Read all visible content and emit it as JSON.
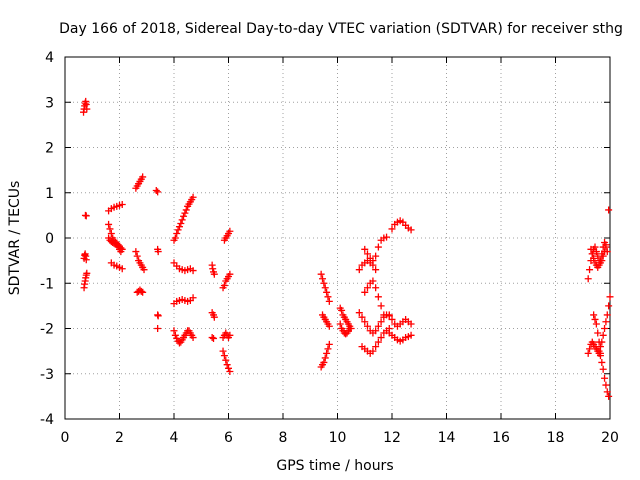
{
  "chart_data": {
    "type": "scatter",
    "title": "Day 166 of 2018, Sidereal Day-to-day VTEC variation (SDTVAR) for receiver sthg",
    "xlabel": "GPS time / hours",
    "ylabel": "SDTVAR / TECUs",
    "xlim": [
      0,
      20
    ],
    "ylim": [
      -4,
      4
    ],
    "x_ticks": [
      "0",
      "2",
      "4",
      "6",
      "8",
      "10",
      "12",
      "14",
      "16",
      "18",
      "20"
    ],
    "y_ticks": [
      "-4",
      "-3",
      "-2",
      "-1",
      "0",
      "1",
      "2",
      "3",
      "4"
    ],
    "grid": true,
    "marker": "+",
    "marker_color": "#ff0000",
    "segments": [
      {
        "x": [
          0.68,
          0.7,
          0.72,
          0.74,
          0.76,
          0.78,
          0.8
        ],
        "y": [
          2.78,
          2.85,
          2.92,
          2.98,
          3.02,
          2.95,
          2.85
        ]
      },
      {
        "x": [
          0.7,
          0.72,
          0.74,
          0.76,
          0.78
        ],
        "y": [
          -0.45,
          -0.38,
          -0.35,
          -0.4,
          -0.48
        ]
      },
      {
        "x": [
          0.7,
          0.72,
          0.74,
          0.76,
          0.78,
          0.8
        ],
        "y": [
          -1.1,
          -1.02,
          -0.95,
          -0.88,
          -0.82,
          -0.78
        ]
      },
      {
        "x": [
          0.75,
          0.78
        ],
        "y": [
          0.5,
          0.49
        ]
      },
      {
        "x": [
          1.6,
          1.7,
          1.8,
          1.9,
          2.0,
          2.1
        ],
        "y": [
          0.6,
          0.65,
          0.68,
          0.7,
          0.72,
          0.74
        ]
      },
      {
        "x": [
          1.6,
          1.65,
          1.7,
          1.75,
          1.8,
          1.85,
          1.9,
          1.95,
          2.0,
          2.05,
          2.1
        ],
        "y": [
          0.3,
          0.2,
          0.1,
          0.0,
          -0.05,
          -0.1,
          -0.12,
          -0.15,
          -0.18,
          -0.22,
          -0.25
        ]
      },
      {
        "x": [
          1.6,
          1.65,
          1.7,
          1.75,
          1.8,
          1.85,
          1.9,
          1.95,
          2.0,
          2.05
        ],
        "y": [
          0.0,
          -0.05,
          -0.08,
          -0.1,
          -0.12,
          -0.12,
          -0.15,
          -0.2,
          -0.25,
          -0.3
        ]
      },
      {
        "x": [
          1.7,
          1.8,
          1.9,
          2.0,
          2.1
        ],
        "y": [
          -0.55,
          -0.6,
          -0.62,
          -0.65,
          -0.68
        ]
      },
      {
        "x": [
          2.6,
          2.65,
          2.7,
          2.75,
          2.8,
          2.85
        ],
        "y": [
          1.1,
          1.15,
          1.2,
          1.25,
          1.3,
          1.35
        ]
      },
      {
        "x": [
          2.6,
          2.65,
          2.7,
          2.75,
          2.8,
          2.85,
          2.9
        ],
        "y": [
          -0.3,
          -0.4,
          -0.5,
          -0.55,
          -0.6,
          -0.65,
          -0.7
        ]
      },
      {
        "x": [
          2.65,
          2.7,
          2.75,
          2.8,
          2.85
        ],
        "y": [
          -1.2,
          -1.18,
          -1.15,
          -1.18,
          -1.2
        ]
      },
      {
        "x": [
          3.35,
          3.4
        ],
        "y": [
          1.05,
          1.02
        ]
      },
      {
        "x": [
          3.4,
          3.42
        ],
        "y": [
          -0.25,
          -0.3
        ]
      },
      {
        "x": [
          3.4,
          3.42
        ],
        "y": [
          -1.7,
          -1.72
        ]
      },
      {
        "x": [
          3.4
        ],
        "y": [
          -2.0
        ]
      },
      {
        "x": [
          4.0,
          4.05,
          4.1,
          4.15,
          4.2,
          4.25,
          4.3,
          4.35,
          4.4,
          4.45,
          4.5,
          4.55,
          4.6,
          4.65,
          4.7
        ],
        "y": [
          -0.05,
          0.0,
          0.1,
          0.18,
          0.25,
          0.32,
          0.4,
          0.48,
          0.55,
          0.62,
          0.7,
          0.75,
          0.8,
          0.85,
          0.9
        ]
      },
      {
        "x": [
          4.0,
          4.1,
          4.2,
          4.3,
          4.4,
          4.5,
          4.6,
          4.7
        ],
        "y": [
          -0.55,
          -0.62,
          -0.68,
          -0.7,
          -0.72,
          -0.7,
          -0.68,
          -0.72
        ]
      },
      {
        "x": [
          4.0,
          4.1,
          4.2,
          4.3,
          4.4,
          4.5,
          4.6,
          4.7
        ],
        "y": [
          -1.45,
          -1.4,
          -1.38,
          -1.36,
          -1.38,
          -1.4,
          -1.38,
          -1.32
        ]
      },
      {
        "x": [
          4.0,
          4.05,
          4.1,
          4.15,
          4.2,
          4.25,
          4.3,
          4.35,
          4.4,
          4.45,
          4.5,
          4.55,
          4.6,
          4.65,
          4.7
        ],
        "y": [
          -2.05,
          -2.15,
          -2.22,
          -2.28,
          -2.32,
          -2.3,
          -2.25,
          -2.2,
          -2.15,
          -2.1,
          -2.05,
          -2.05,
          -2.1,
          -2.15,
          -2.2
        ]
      },
      {
        "x": [
          5.4,
          5.42,
          5.45,
          5.48
        ],
        "y": [
          -0.6,
          -0.68,
          -0.75,
          -0.8
        ]
      },
      {
        "x": [
          5.4,
          5.45,
          5.48
        ],
        "y": [
          -1.65,
          -1.7,
          -1.75
        ]
      },
      {
        "x": [
          5.4,
          5.45
        ],
        "y": [
          -2.2,
          -2.22
        ]
      },
      {
        "x": [
          5.85,
          5.9,
          5.95,
          6.0,
          6.05
        ],
        "y": [
          -0.05,
          0.0,
          0.05,
          0.1,
          0.15
        ]
      },
      {
        "x": [
          5.8,
          5.85,
          5.9,
          5.95,
          6.0,
          6.05
        ],
        "y": [
          -1.1,
          -1.05,
          -0.95,
          -0.9,
          -0.85,
          -0.8
        ]
      },
      {
        "x": [
          5.8,
          5.85,
          5.9,
          5.95,
          6.0,
          6.05
        ],
        "y": [
          -2.2,
          -2.15,
          -2.1,
          -2.15,
          -2.2,
          -2.15
        ]
      },
      {
        "x": [
          5.8,
          5.85,
          5.9,
          5.95,
          6.0,
          6.05
        ],
        "y": [
          -2.5,
          -2.6,
          -2.7,
          -2.8,
          -2.88,
          -2.95
        ]
      },
      {
        "x": [
          9.4,
          9.45,
          9.5,
          9.55,
          9.6,
          9.65,
          9.7
        ],
        "y": [
          -0.8,
          -0.9,
          -1.0,
          -1.1,
          -1.2,
          -1.3,
          -1.4
        ]
      },
      {
        "x": [
          9.45,
          9.5,
          9.55,
          9.6,
          9.65,
          9.7
        ],
        "y": [
          -1.7,
          -1.75,
          -1.8,
          -1.85,
          -1.9,
          -1.95
        ]
      },
      {
        "x": [
          9.4,
          9.45,
          9.5,
          9.55,
          9.6,
          9.65,
          9.7
        ],
        "y": [
          -2.85,
          -2.8,
          -2.75,
          -2.65,
          -2.55,
          -2.45,
          -2.35
        ]
      },
      {
        "x": [
          10.1,
          10.15,
          10.2,
          10.25,
          10.3,
          10.35,
          10.4,
          10.45,
          10.5
        ],
        "y": [
          -1.55,
          -1.6,
          -1.7,
          -1.75,
          -1.8,
          -1.85,
          -1.9,
          -1.95,
          -2.0
        ]
      },
      {
        "x": [
          10.1,
          10.15,
          10.2,
          10.25,
          10.3,
          10.35,
          10.4,
          10.45
        ],
        "y": [
          -1.9,
          -2.0,
          -2.05,
          -2.1,
          -2.12,
          -2.1,
          -2.05,
          -2.0
        ]
      },
      {
        "x": [
          10.8,
          10.9,
          11.0,
          11.1,
          11.2,
          11.3,
          11.4
        ],
        "y": [
          -0.7,
          -0.6,
          -0.55,
          -0.5,
          -0.55,
          -0.6,
          -0.7
        ]
      },
      {
        "x": [
          11.0,
          11.1,
          11.2,
          11.3,
          11.4,
          11.5,
          11.6,
          11.7,
          11.8
        ],
        "y": [
          -0.25,
          -0.35,
          -0.45,
          -0.5,
          -0.4,
          -0.2,
          -0.05,
          0.0,
          0.02
        ]
      },
      {
        "x": [
          11.0,
          11.1,
          11.2,
          11.3,
          11.4,
          11.5,
          11.6,
          11.7
        ],
        "y": [
          -1.2,
          -1.1,
          -1.0,
          -0.95,
          -1.1,
          -1.3,
          -1.5,
          -1.7
        ]
      },
      {
        "x": [
          10.8,
          10.9,
          11.0,
          11.1,
          11.2,
          11.3,
          11.4,
          11.5,
          11.6,
          11.7,
          11.8,
          11.9
        ],
        "y": [
          -1.65,
          -1.75,
          -1.85,
          -1.95,
          -2.05,
          -2.1,
          -2.05,
          -1.95,
          -1.85,
          -1.75,
          -1.7,
          -1.72
        ]
      },
      {
        "x": [
          10.9,
          11.0,
          11.1,
          11.2,
          11.3,
          11.4,
          11.5,
          11.6,
          11.7,
          11.8,
          11.9
        ],
        "y": [
          -2.4,
          -2.45,
          -2.5,
          -2.55,
          -2.5,
          -2.4,
          -2.3,
          -2.2,
          -2.1,
          -2.05,
          -2.0
        ]
      },
      {
        "x": [
          12.0,
          12.1,
          12.2,
          12.3,
          12.4,
          12.5,
          12.6,
          12.7
        ],
        "y": [
          0.2,
          0.3,
          0.35,
          0.38,
          0.35,
          0.28,
          0.22,
          0.18
        ]
      },
      {
        "x": [
          11.9,
          12.0,
          12.1,
          12.2,
          12.3,
          12.4,
          12.5,
          12.6,
          12.7
        ],
        "y": [
          -1.7,
          -1.8,
          -1.9,
          -1.95,
          -1.9,
          -1.85,
          -1.8,
          -1.85,
          -1.9
        ]
      },
      {
        "x": [
          11.9,
          12.0,
          12.1,
          12.2,
          12.3,
          12.4,
          12.5,
          12.6,
          12.7
        ],
        "y": [
          -2.1,
          -2.15,
          -2.2,
          -2.25,
          -2.28,
          -2.25,
          -2.2,
          -2.18,
          -2.15
        ]
      },
      {
        "x": [
          19.2,
          19.25,
          19.3,
          19.35,
          19.4,
          19.45,
          19.5,
          19.55,
          19.6,
          19.65,
          19.7,
          19.75,
          19.8,
          19.85
        ],
        "y": [
          -0.9,
          -0.7,
          -0.5,
          -0.35,
          -0.25,
          -0.2,
          -0.3,
          -0.4,
          -0.5,
          -0.55,
          -0.5,
          -0.4,
          -0.3,
          -0.2
        ]
      },
      {
        "x": [
          19.3,
          19.35,
          19.4,
          19.45,
          19.5,
          19.55,
          19.6,
          19.65,
          19.7,
          19.75,
          19.8,
          19.85,
          19.9
        ],
        "y": [
          -0.25,
          -0.35,
          -0.45,
          -0.55,
          -0.6,
          -0.65,
          -0.6,
          -0.5,
          -0.35,
          -0.2,
          -0.1,
          -0.15,
          -0.3
        ]
      },
      {
        "x": [
          19.2,
          19.25,
          19.3,
          19.35,
          19.4,
          19.45,
          19.5,
          19.55,
          19.6,
          19.65
        ],
        "y": [
          -2.55,
          -2.45,
          -2.35,
          -2.3,
          -2.35,
          -2.4,
          -2.45,
          -2.5,
          -2.55,
          -2.6
        ]
      },
      {
        "x": [
          19.4,
          19.45,
          19.5,
          19.55,
          19.6,
          19.65,
          19.7,
          19.75,
          19.8,
          19.85,
          19.9,
          19.95
        ],
        "y": [
          -1.7,
          -1.8,
          -1.9,
          -2.1,
          -2.3,
          -2.55,
          -2.75,
          -2.9,
          -3.1,
          -3.25,
          -3.4,
          -3.5
        ]
      },
      {
        "x": [
          19.6,
          19.65,
          19.7,
          19.75,
          19.8,
          19.85,
          19.9,
          19.95,
          20.0
        ],
        "y": [
          -2.5,
          -2.4,
          -2.3,
          -2.15,
          -2.0,
          -1.85,
          -1.7,
          -1.5,
          -1.3
        ]
      },
      {
        "x": [
          19.95
        ],
        "y": [
          0.62
        ]
      }
    ]
  }
}
